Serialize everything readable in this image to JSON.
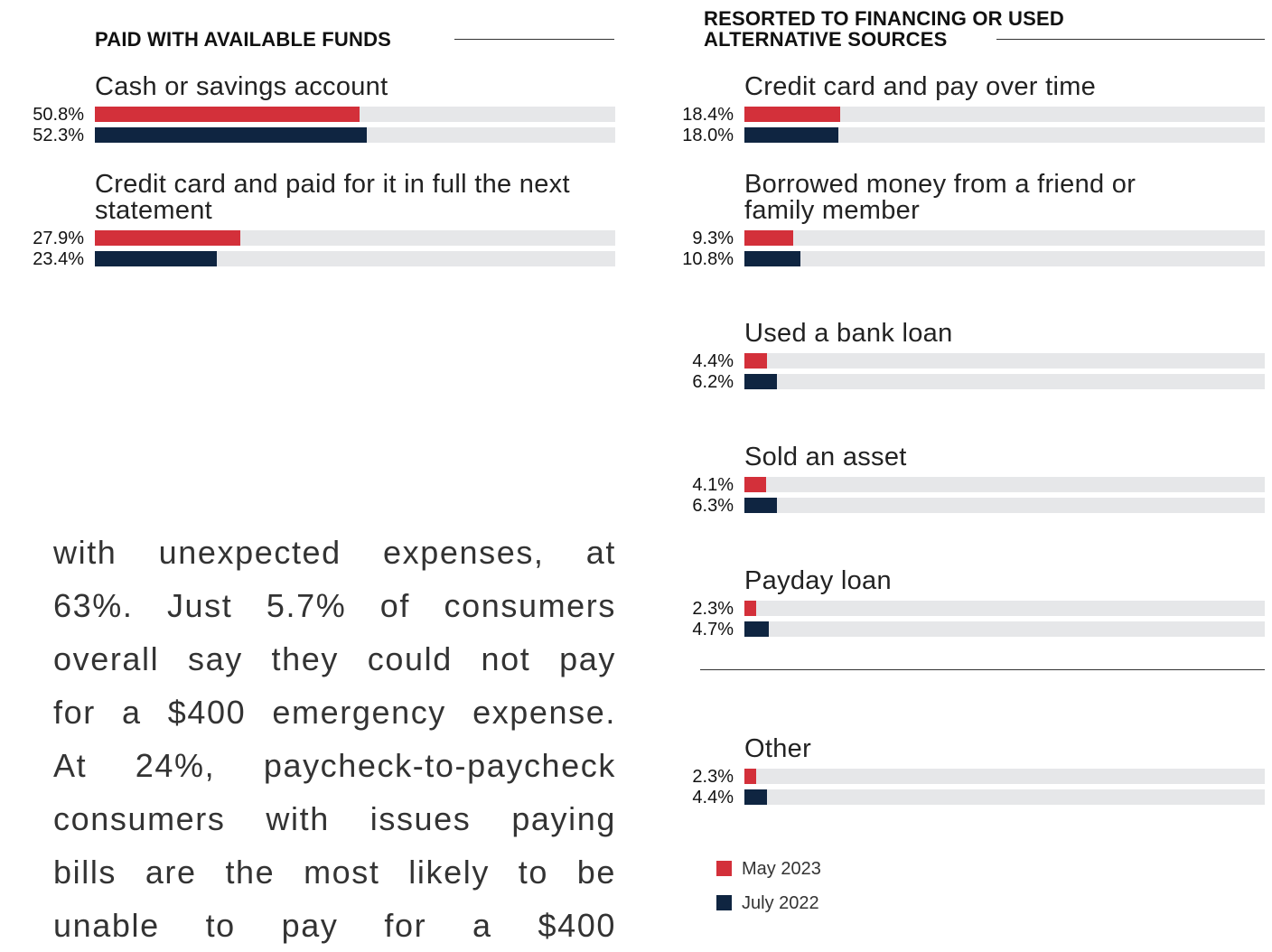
{
  "chart_data": [
    {
      "type": "bar",
      "orientation": "horizontal",
      "title": "PAID WITH AVAILABLE FUNDS",
      "categories": [
        "Cash or savings account",
        "Credit card and paid for it in full the next statement"
      ],
      "xlim": [
        0,
        100
      ],
      "series": [
        {
          "name": "May 2023",
          "color": "#d3303a",
          "values": [
            50.8,
            27.9
          ],
          "value_labels": [
            "50.8%",
            "27.9%"
          ]
        },
        {
          "name": "July 2022",
          "color": "#0f2541",
          "values": [
            52.3,
            23.4
          ],
          "value_labels": [
            "52.3%",
            "23.4%"
          ]
        }
      ]
    },
    {
      "type": "bar",
      "orientation": "horizontal",
      "title": "RESORTED TO FINANCING OR USED ALTERNATIVE SOURCES",
      "categories": [
        "Credit card and pay over time",
        "Borrowed money from a friend or family member",
        "Used a bank loan",
        "Sold an asset",
        "Payday loan",
        "Other"
      ],
      "xlim": [
        0,
        100
      ],
      "legend": "bottom-left",
      "series": [
        {
          "name": "May 2023",
          "color": "#d3303a",
          "values": [
            18.4,
            9.3,
            4.4,
            4.1,
            2.3,
            2.3
          ],
          "value_labels": [
            "18.4%",
            "9.3%",
            "4.4%",
            "4.1%",
            "2.3%",
            "2.3%"
          ]
        },
        {
          "name": "July 2022",
          "color": "#0f2541",
          "values": [
            18.0,
            10.8,
            6.2,
            6.3,
            4.7,
            4.4
          ],
          "value_labels": [
            "18.0%",
            "10.8%",
            "6.2%",
            "6.3%",
            "4.7%",
            "4.4%"
          ]
        }
      ]
    }
  ],
  "body_text": [
    "with unexpected expenses, at",
    "63%. Just 5.7% of consumers",
    "overall say they could not pay",
    "for a $400 emergency expense.",
    "At 24%, paycheck-to-paycheck",
    "consumers with issues paying",
    "bills are the most likely to be",
    "unable to pay for a $400"
  ]
}
